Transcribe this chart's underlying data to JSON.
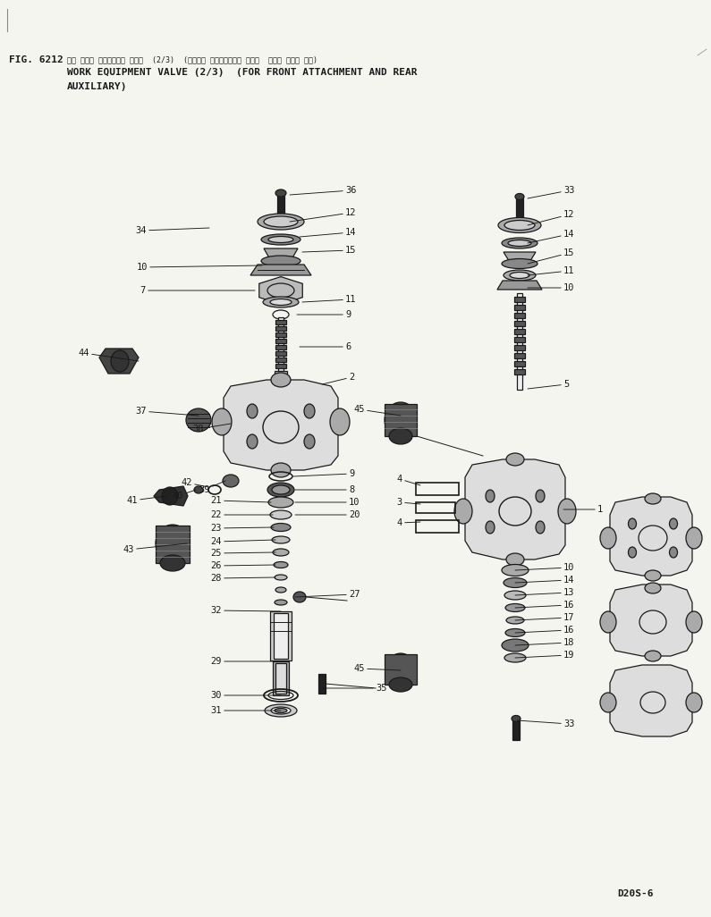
{
  "fig_label": "FIG. 6212",
  "japanese_title": "サギ ヨウキ コントロール バルブ  (2/3)  (フロント アタッチメント オヨビ  リヤー ボジョ ヨウ)",
  "english_title_line1": "WORK EQUIPMENT VALVE (2/3)  (FOR FRONT ATTACHMENT AND REAR",
  "english_title_line2": "AUXILIARY)",
  "model_label": "D20S-6",
  "bg_color": "#f5f5f0",
  "text_color": "#000000"
}
